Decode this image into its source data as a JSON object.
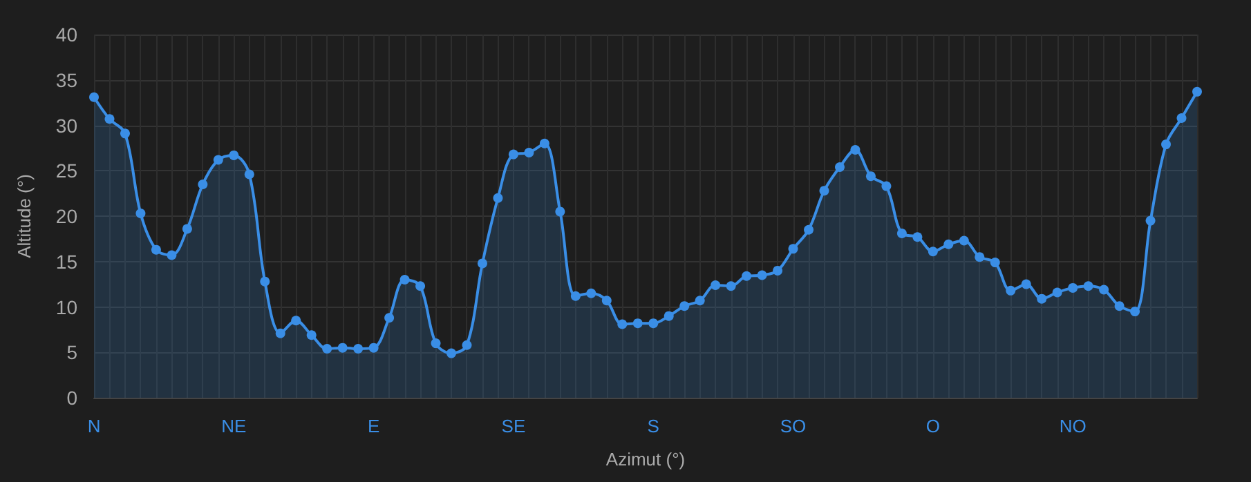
{
  "chart_data": {
    "type": "area",
    "xlabel": "Azimut (°)",
    "ylabel": "Altitude (°)",
    "categories": [
      "N",
      null,
      null,
      null,
      null,
      null,
      null,
      null,
      null,
      "NE",
      null,
      null,
      null,
      null,
      null,
      null,
      null,
      null,
      "E",
      null,
      null,
      null,
      null,
      null,
      null,
      null,
      null,
      "SE",
      null,
      null,
      null,
      null,
      null,
      null,
      null,
      null,
      "S",
      null,
      null,
      null,
      null,
      null,
      null,
      null,
      null,
      "SO",
      null,
      null,
      null,
      null,
      null,
      null,
      null,
      null,
      "O",
      null,
      null,
      null,
      null,
      null,
      null,
      null,
      null,
      "NO",
      null,
      null,
      null,
      null,
      null,
      null,
      null,
      null
    ],
    "series": [
      {
        "color": "#3a8ee6",
        "values": [
          33.1,
          30.7,
          29.1,
          20.3,
          16.3,
          15.7,
          18.6,
          23.5,
          26.2,
          26.7,
          24.6,
          12.8,
          7.1,
          8.5,
          6.9,
          5.4,
          5.5,
          5.4,
          5.5,
          8.8,
          13.0,
          12.3,
          6.0,
          4.9,
          5.8,
          14.8,
          22.0,
          26.8,
          27.0,
          28.0,
          20.5,
          11.2,
          11.5,
          10.7,
          8.1,
          8.2,
          8.2,
          9.0,
          10.1,
          10.7,
          12.4,
          12.3,
          13.4,
          13.5,
          14.0,
          16.4,
          18.5,
          22.8,
          25.4,
          27.3,
          24.4,
          23.3,
          18.1,
          17.7,
          16.1,
          16.9,
          17.3,
          15.5,
          14.9,
          11.8,
          12.5,
          10.9,
          11.6,
          12.1,
          12.3,
          11.9,
          10.1,
          9.5,
          19.5,
          27.9,
          30.8,
          33.7
        ]
      }
    ],
    "ylim": [
      0,
      40
    ],
    "yticks": [
      0,
      5,
      10,
      15,
      20,
      25,
      30,
      35,
      40
    ],
    "grid": true,
    "marker": "circle",
    "line_style": "solid"
  }
}
